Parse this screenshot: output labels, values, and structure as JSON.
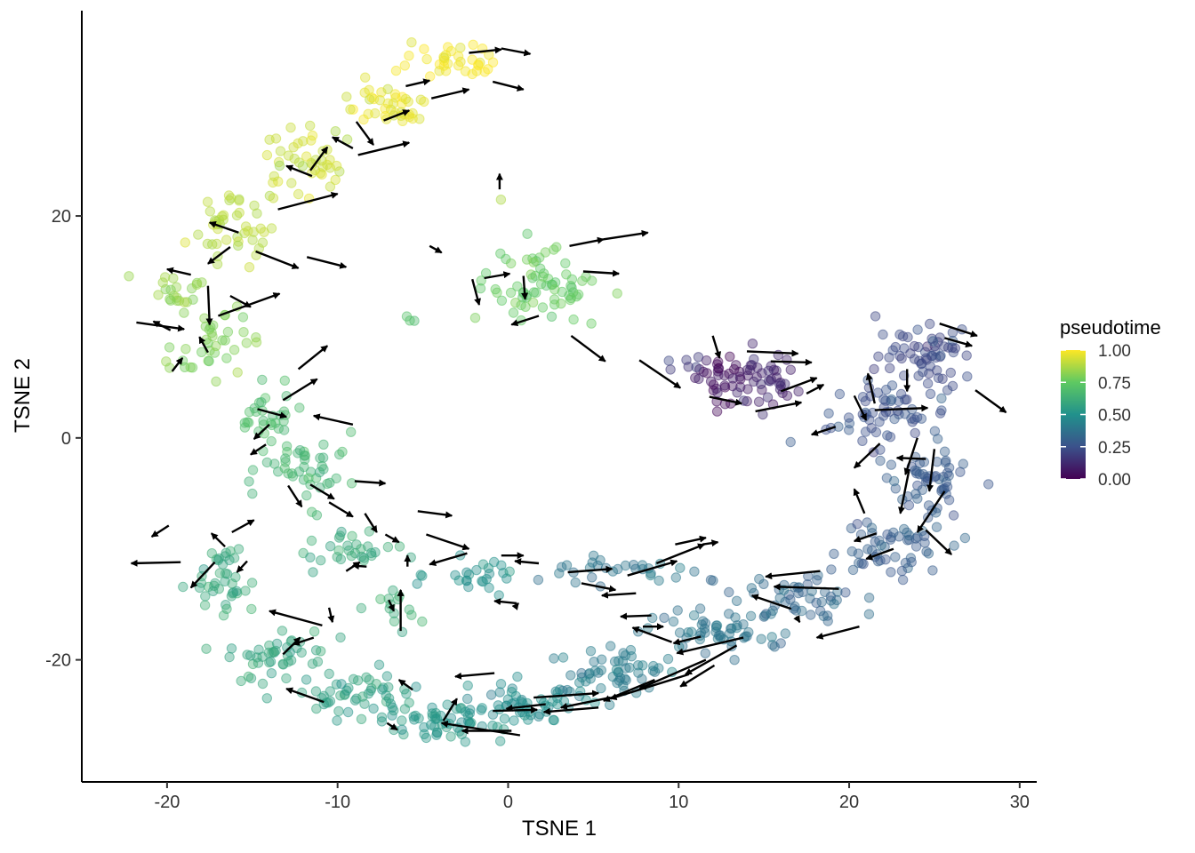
{
  "chart_data": {
    "type": "scatter",
    "title": "",
    "xlabel": "TSNE 1",
    "ylabel": "TSNE 2",
    "xlim": [
      -25,
      31
    ],
    "ylim": [
      -31,
      38.5
    ],
    "x_ticks": [
      -20,
      -10,
      0,
      10,
      20,
      30
    ],
    "y_ticks": [
      -20,
      0,
      20
    ],
    "x_tick_labels": [
      "-20",
      "-10",
      "0",
      "10",
      "20",
      "30"
    ],
    "y_tick_labels": [
      "-20",
      "0",
      "20"
    ],
    "grid": false,
    "color_legend": {
      "title": "pseudotime",
      "placement": "right",
      "colormap": "viridis",
      "range": [
        0,
        1
      ],
      "tick_values": [
        1.0,
        0.75,
        0.5,
        0.25,
        0.0
      ],
      "tick_labels": [
        "1.00",
        "0.75",
        "0.50",
        "0.25",
        "0.00"
      ],
      "stops": [
        "#440154",
        "#3b528b",
        "#21918c",
        "#5ec962",
        "#fde725"
      ]
    },
    "point_style": {
      "opacity": 0.4
    },
    "clusters": [
      {
        "cx": 12.5,
        "cy": 5.5,
        "sx": 1.1,
        "sy": 1.7,
        "n": 34,
        "t": 0.05
      },
      {
        "cx": 15.0,
        "cy": 5.0,
        "sx": 1.5,
        "sy": 2.0,
        "n": 40,
        "t": 0.1
      },
      {
        "cx": 10.5,
        "cy": 6.5,
        "sx": 1.0,
        "sy": 0.6,
        "n": 6,
        "t": 0.18
      },
      {
        "cx": 24.5,
        "cy": 7.5,
        "sx": 2.0,
        "sy": 2.2,
        "n": 60,
        "t": 0.22
      },
      {
        "cx": 22.5,
        "cy": 2.0,
        "sx": 2.5,
        "sy": 2.2,
        "n": 60,
        "t": 0.25
      },
      {
        "cx": 24.5,
        "cy": -3.5,
        "sx": 1.6,
        "sy": 2.5,
        "n": 55,
        "t": 0.28
      },
      {
        "cx": 22.0,
        "cy": -10.0,
        "sx": 2.8,
        "sy": 1.8,
        "n": 55,
        "t": 0.3
      },
      {
        "cx": 17.0,
        "cy": -14.0,
        "sx": 2.5,
        "sy": 1.6,
        "n": 50,
        "t": 0.33
      },
      {
        "cx": 12.0,
        "cy": -17.5,
        "sx": 3.0,
        "sy": 1.6,
        "n": 55,
        "t": 0.38
      },
      {
        "cx": 6.0,
        "cy": -21.0,
        "sx": 3.0,
        "sy": 1.5,
        "n": 55,
        "t": 0.42
      },
      {
        "cx": 1.0,
        "cy": -24.0,
        "sx": 2.5,
        "sy": 1.5,
        "n": 55,
        "t": 0.47
      },
      {
        "cx": -4.0,
        "cy": -25.5,
        "sx": 2.5,
        "sy": 1.2,
        "n": 55,
        "t": 0.52
      },
      {
        "cx": -9.0,
        "cy": -23.0,
        "sx": 2.5,
        "sy": 1.6,
        "n": 50,
        "t": 0.56
      },
      {
        "cx": -13.5,
        "cy": -19.5,
        "sx": 2.0,
        "sy": 1.8,
        "n": 45,
        "t": 0.58
      },
      {
        "cx": -16.5,
        "cy": -13.0,
        "sx": 1.3,
        "sy": 2.5,
        "n": 40,
        "t": 0.6
      },
      {
        "cx": -6.5,
        "cy": -15.5,
        "sx": 0.8,
        "sy": 1.4,
        "n": 14,
        "t": 0.62
      },
      {
        "cx": 6.0,
        "cy": -12.0,
        "sx": 3.5,
        "sy": 0.9,
        "n": 30,
        "t": 0.4
      },
      {
        "cx": -2.0,
        "cy": -12.5,
        "sx": 2.0,
        "sy": 1.0,
        "n": 25,
        "t": 0.5
      },
      {
        "cx": -9.5,
        "cy": -10.0,
        "sx": 2.0,
        "sy": 1.5,
        "n": 30,
        "t": 0.6
      },
      {
        "cx": -11.5,
        "cy": -3.0,
        "sx": 2.0,
        "sy": 2.2,
        "n": 45,
        "t": 0.65
      },
      {
        "cx": -14.0,
        "cy": 1.5,
        "sx": 1.5,
        "sy": 1.8,
        "n": 30,
        "t": 0.68
      },
      {
        "cx": -17.5,
        "cy": 8.5,
        "sx": 1.5,
        "sy": 2.5,
        "n": 40,
        "t": 0.8
      },
      {
        "cx": -19.5,
        "cy": 13.5,
        "sx": 1.3,
        "sy": 1.2,
        "n": 20,
        "t": 0.84
      },
      {
        "cx": 2.0,
        "cy": 13.5,
        "sx": 2.2,
        "sy": 2.5,
        "n": 70,
        "t": 0.75
      },
      {
        "cx": -16.5,
        "cy": 19.0,
        "sx": 1.8,
        "sy": 2.0,
        "n": 45,
        "t": 0.88
      },
      {
        "cx": -11.5,
        "cy": 25.0,
        "sx": 2.0,
        "sy": 2.0,
        "n": 45,
        "t": 0.92
      },
      {
        "cx": -7.0,
        "cy": 30.0,
        "sx": 2.0,
        "sy": 1.8,
        "n": 40,
        "t": 0.96
      },
      {
        "cx": -3.0,
        "cy": 34.0,
        "sx": 2.0,
        "sy": 1.2,
        "n": 35,
        "t": 0.99
      },
      {
        "cx": -5.5,
        "cy": 10.5,
        "sx": 0.3,
        "sy": 0.3,
        "n": 3,
        "t": 0.72
      },
      {
        "cx": -0.5,
        "cy": 21.5,
        "sx": 0.1,
        "sy": 0.1,
        "n": 1,
        "t": 0.9
      }
    ],
    "arrows": [
      {
        "x1": -8.8,
        "y1": 25.5,
        "x2": -5.8,
        "y2": 26.6
      },
      {
        "x1": -13.5,
        "y1": 20.6,
        "x2": -10.0,
        "y2": 22.0
      },
      {
        "x1": -17.0,
        "y1": 11.0,
        "x2": -13.4,
        "y2": 13.0
      },
      {
        "x1": -17.6,
        "y1": 13.7,
        "x2": -17.5,
        "y2": 10.2
      },
      {
        "x1": -14.8,
        "y1": 16.8,
        "x2": -12.3,
        "y2": 15.3
      },
      {
        "x1": -21.8,
        "y1": 10.4,
        "x2": -19.0,
        "y2": 9.8
      },
      {
        "x1": -12.3,
        "y1": 6.2,
        "x2": -10.6,
        "y2": 8.3
      },
      {
        "x1": -13.2,
        "y1": 3.4,
        "x2": -11.2,
        "y2": 5.3
      },
      {
        "x1": -16.3,
        "y1": 12.8,
        "x2": -15.1,
        "y2": 11.8
      },
      {
        "x1": -11.8,
        "y1": 16.3,
        "x2": -9.5,
        "y2": 15.4
      },
      {
        "x1": -4.6,
        "y1": 17.3,
        "x2": -3.9,
        "y2": 16.7
      },
      {
        "x1": -4.5,
        "y1": 30.6,
        "x2": -2.3,
        "y2": 31.4
      },
      {
        "x1": -0.9,
        "y1": 32.1,
        "x2": 0.9,
        "y2": 31.4
      },
      {
        "x1": -0.4,
        "y1": 35.1,
        "x2": 1.3,
        "y2": 34.6
      },
      {
        "x1": -2.3,
        "y1": 34.7,
        "x2": -0.4,
        "y2": 35.0
      },
      {
        "x1": -6.0,
        "y1": 31.7,
        "x2": -4.6,
        "y2": 32.2
      },
      {
        "x1": -7.3,
        "y1": 28.6,
        "x2": -5.8,
        "y2": 29.5
      },
      {
        "x1": -9.1,
        "y1": 26.1,
        "x2": -10.3,
        "y2": 27.1
      },
      {
        "x1": -11.5,
        "y1": 23.6,
        "x2": -13.0,
        "y2": 24.5
      },
      {
        "x1": -15.8,
        "y1": 18.5,
        "x2": -17.5,
        "y2": 19.4
      },
      {
        "x1": -18.6,
        "y1": 14.7,
        "x2": -20.0,
        "y2": 15.2
      },
      {
        "x1": 3.6,
        "y1": 17.3,
        "x2": 5.6,
        "y2": 17.9
      },
      {
        "x1": 5.6,
        "y1": 17.9,
        "x2": 8.2,
        "y2": 18.5
      },
      {
        "x1": 4.4,
        "y1": 15.0,
        "x2": 6.5,
        "y2": 14.8
      },
      {
        "x1": 3.7,
        "y1": 9.2,
        "x2": 5.7,
        "y2": 6.9
      },
      {
        "x1": 0.9,
        "y1": 14.6,
        "x2": 1.0,
        "y2": 12.5
      },
      {
        "x1": -1.4,
        "y1": 14.4,
        "x2": 0.1,
        "y2": 14.8
      },
      {
        "x1": 1.8,
        "y1": 11.0,
        "x2": 0.2,
        "y2": 10.2
      },
      {
        "x1": -0.5,
        "y1": 22.4,
        "x2": -0.5,
        "y2": 23.8
      },
      {
        "x1": 7.7,
        "y1": 7.0,
        "x2": 10.1,
        "y2": 4.5
      },
      {
        "x1": 12.0,
        "y1": 9.2,
        "x2": 12.4,
        "y2": 7.2
      },
      {
        "x1": 11.8,
        "y1": 3.7,
        "x2": 13.7,
        "y2": 3.1
      },
      {
        "x1": 14.0,
        "y1": 7.8,
        "x2": 17.0,
        "y2": 7.6
      },
      {
        "x1": 15.4,
        "y1": 6.9,
        "x2": 17.8,
        "y2": 6.8
      },
      {
        "x1": 16.0,
        "y1": 4.2,
        "x2": 18.1,
        "y2": 5.4
      },
      {
        "x1": 14.5,
        "y1": 2.4,
        "x2": 17.2,
        "y2": 3.2
      },
      {
        "x1": 17.5,
        "y1": 4.0,
        "x2": 18.5,
        "y2": 4.8
      },
      {
        "x1": 19.2,
        "y1": 1.0,
        "x2": 17.8,
        "y2": 0.3
      },
      {
        "x1": 21.5,
        "y1": 2.5,
        "x2": 24.6,
        "y2": 2.7
      },
      {
        "x1": 23.4,
        "y1": 6.2,
        "x2": 23.4,
        "y2": 4.2
      },
      {
        "x1": 25.3,
        "y1": 10.3,
        "x2": 27.5,
        "y2": 9.2
      },
      {
        "x1": 25.6,
        "y1": 9.0,
        "x2": 27.2,
        "y2": 8.3
      },
      {
        "x1": 27.4,
        "y1": 4.3,
        "x2": 29.2,
        "y2": 2.3
      },
      {
        "x1": 24.0,
        "y1": 0.0,
        "x2": 23.3,
        "y2": -3.3
      },
      {
        "x1": 25.0,
        "y1": -1.0,
        "x2": 24.7,
        "y2": -4.8
      },
      {
        "x1": 25.6,
        "y1": -4.8,
        "x2": 24.0,
        "y2": -8.5
      },
      {
        "x1": 23.5,
        "y1": -3.0,
        "x2": 23.0,
        "y2": -6.8
      },
      {
        "x1": 20.9,
        "y1": -6.8,
        "x2": 20.3,
        "y2": -4.6
      },
      {
        "x1": 21.6,
        "y1": -8.6,
        "x2": 20.3,
        "y2": -9.3
      },
      {
        "x1": 22.6,
        "y1": -10.0,
        "x2": 21.0,
        "y2": -10.9
      },
      {
        "x1": 19.4,
        "y1": -13.6,
        "x2": 15.6,
        "y2": -13.4
      },
      {
        "x1": 18.3,
        "y1": -12.0,
        "x2": 15.1,
        "y2": -12.5
      },
      {
        "x1": 16.6,
        "y1": -15.4,
        "x2": 14.3,
        "y2": -14.2
      },
      {
        "x1": 13.8,
        "y1": -18.0,
        "x2": 9.9,
        "y2": -19.4
      },
      {
        "x1": 13.4,
        "y1": -18.7,
        "x2": 10.4,
        "y2": -21.3
      },
      {
        "x1": 12.1,
        "y1": -20.5,
        "x2": 10.1,
        "y2": -22.4
      },
      {
        "x1": 10.6,
        "y1": -21.3,
        "x2": 6.0,
        "y2": -23.5
      },
      {
        "x1": 11.6,
        "y1": -20.0,
        "x2": 7.7,
        "y2": -22.6
      },
      {
        "x1": 8.6,
        "y1": -21.8,
        "x2": 5.6,
        "y2": -23.7
      },
      {
        "x1": 6.0,
        "y1": -23.4,
        "x2": 3.1,
        "y2": -24.3
      },
      {
        "x1": 5.3,
        "y1": -24.3,
        "x2": 2.1,
        "y2": -24.7
      },
      {
        "x1": 2.2,
        "y1": -24.0,
        "x2": -0.1,
        "y2": -24.4
      },
      {
        "x1": 1.5,
        "y1": -23.4,
        "x2": 5.3,
        "y2": -23.0
      },
      {
        "x1": -0.9,
        "y1": -24.6,
        "x2": 1.7,
        "y2": -24.5
      },
      {
        "x1": 0.2,
        "y1": -26.4,
        "x2": -2.7,
        "y2": -26.4
      },
      {
        "x1": 0.7,
        "y1": -26.8,
        "x2": -3.9,
        "y2": -25.7
      },
      {
        "x1": -3.8,
        "y1": -25.5,
        "x2": -3.0,
        "y2": -23.5
      },
      {
        "x1": -0.8,
        "y1": -21.2,
        "x2": -3.1,
        "y2": -21.5
      },
      {
        "x1": -5.6,
        "y1": -22.7,
        "x2": -6.4,
        "y2": -21.8
      },
      {
        "x1": -7.1,
        "y1": -25.7,
        "x2": -6.5,
        "y2": -26.3
      },
      {
        "x1": -10.8,
        "y1": -23.8,
        "x2": -13.0,
        "y2": -22.6
      },
      {
        "x1": -13.2,
        "y1": -19.5,
        "x2": -12.2,
        "y2": -18.0
      },
      {
        "x1": -11.4,
        "y1": -18.0,
        "x2": -12.6,
        "y2": -18.6
      },
      {
        "x1": -10.9,
        "y1": -16.9,
        "x2": -14.0,
        "y2": -15.6
      },
      {
        "x1": -15.3,
        "y1": -11.1,
        "x2": -15.9,
        "y2": -12.1
      },
      {
        "x1": -16.2,
        "y1": -8.5,
        "x2": -14.9,
        "y2": -7.4
      },
      {
        "x1": -16.6,
        "y1": -9.8,
        "x2": -17.4,
        "y2": -8.6
      },
      {
        "x1": -19.2,
        "y1": -11.2,
        "x2": -22.1,
        "y2": -11.3
      },
      {
        "x1": -19.9,
        "y1": -7.9,
        "x2": -20.9,
        "y2": -8.9
      },
      {
        "x1": -17.2,
        "y1": -11.2,
        "x2": -18.6,
        "y2": -13.5
      },
      {
        "x1": -7.0,
        "y1": -14.6,
        "x2": -6.7,
        "y2": -15.6
      },
      {
        "x1": -6.3,
        "y1": -17.4,
        "x2": -6.3,
        "y2": -13.7
      },
      {
        "x1": -10.5,
        "y1": -15.3,
        "x2": -10.3,
        "y2": -16.6
      },
      {
        "x1": -9.5,
        "y1": -12.0,
        "x2": -8.7,
        "y2": -11.2
      },
      {
        "x1": -8.3,
        "y1": -11.6,
        "x2": -9.1,
        "y2": -11.5
      },
      {
        "x1": -5.9,
        "y1": -11.6,
        "x2": -5.9,
        "y2": -10.6
      },
      {
        "x1": -5.3,
        "y1": -6.6,
        "x2": -3.3,
        "y2": -7.0
      },
      {
        "x1": -4.8,
        "y1": -8.7,
        "x2": -2.3,
        "y2": -10.0
      },
      {
        "x1": -0.4,
        "y1": -10.6,
        "x2": 0.9,
        "y2": -10.6
      },
      {
        "x1": -2.4,
        "y1": -10.4,
        "x2": -4.6,
        "y2": -11.4
      },
      {
        "x1": 1.8,
        "y1": -11.3,
        "x2": 0.4,
        "y2": -11.1
      },
      {
        "x1": 3.5,
        "y1": -12.1,
        "x2": 6.1,
        "y2": -11.8
      },
      {
        "x1": 4.3,
        "y1": -13.1,
        "x2": 6.3,
        "y2": -13.7
      },
      {
        "x1": 7.0,
        "y1": -12.4,
        "x2": 9.9,
        "y2": -11.1
      },
      {
        "x1": 8.7,
        "y1": -11.3,
        "x2": 11.5,
        "y2": -9.6
      },
      {
        "x1": 9.8,
        "y1": -9.6,
        "x2": 11.6,
        "y2": -9.0
      },
      {
        "x1": 11.4,
        "y1": -9.6,
        "x2": 12.3,
        "y2": -9.4
      },
      {
        "x1": 7.5,
        "y1": -14.0,
        "x2": 5.5,
        "y2": -14.2
      },
      {
        "x1": 8.4,
        "y1": -16.0,
        "x2": 6.6,
        "y2": -16.1
      },
      {
        "x1": 7.9,
        "y1": -17.0,
        "x2": 9.1,
        "y2": -17.0
      },
      {
        "x1": 9.6,
        "y1": -18.4,
        "x2": 7.3,
        "y2": -17.1
      },
      {
        "x1": 11.3,
        "y1": -17.9,
        "x2": 9.7,
        "y2": -18.5
      },
      {
        "x1": 0.5,
        "y1": -14.9,
        "x2": -0.8,
        "y2": -14.7
      },
      {
        "x1": 0.4,
        "y1": -15.3,
        "x2": 0.6,
        "y2": -14.9
      },
      {
        "x1": 20.6,
        "y1": -17.0,
        "x2": 18.1,
        "y2": -18.0
      },
      {
        "x1": 16.9,
        "y1": -16.1,
        "x2": 17.1,
        "y2": -16.6
      },
      {
        "x1": 24.5,
        "y1": -8.3,
        "x2": 26.0,
        "y2": -10.5
      },
      {
        "x1": 24.5,
        "y1": -1.9,
        "x2": 22.8,
        "y2": -1.8
      },
      {
        "x1": 21.8,
        "y1": -0.5,
        "x2": 20.3,
        "y2": -2.7
      },
      {
        "x1": 21.5,
        "y1": 3.1,
        "x2": 21.1,
        "y2": 5.8
      },
      {
        "x1": 20.3,
        "y1": 3.8,
        "x2": 21.0,
        "y2": 1.6
      },
      {
        "x1": -2.1,
        "y1": 14.3,
        "x2": -1.7,
        "y2": 12.0
      },
      {
        "x1": -9.1,
        "y1": 1.2,
        "x2": -11.4,
        "y2": 2.0
      },
      {
        "x1": -11.6,
        "y1": -4.2,
        "x2": -10.2,
        "y2": -5.5
      },
      {
        "x1": -9.0,
        "y1": -3.9,
        "x2": -7.2,
        "y2": -4.1
      },
      {
        "x1": -10.5,
        "y1": -5.8,
        "x2": -9.1,
        "y2": -7.1
      },
      {
        "x1": -12.9,
        "y1": -4.3,
        "x2": -12.1,
        "y2": -6.2
      },
      {
        "x1": -8.4,
        "y1": -6.8,
        "x2": -7.7,
        "y2": -8.5
      },
      {
        "x1": -7.2,
        "y1": -8.7,
        "x2": -6.4,
        "y2": -9.4
      },
      {
        "x1": -14.2,
        "y1": -0.6,
        "x2": -15.1,
        "y2": -1.5
      },
      {
        "x1": -14.0,
        "y1": 1.2,
        "x2": -14.9,
        "y2": -0.1
      },
      {
        "x1": -14.7,
        "y1": 2.6,
        "x2": -13.0,
        "y2": 1.9
      },
      {
        "x1": -19.7,
        "y1": 6.0,
        "x2": -19.1,
        "y2": 7.2
      },
      {
        "x1": -19.8,
        "y1": 9.7,
        "x2": -20.8,
        "y2": 10.5
      },
      {
        "x1": -17.6,
        "y1": 7.7,
        "x2": -18.1,
        "y2": 9.1
      },
      {
        "x1": -8.9,
        "y1": 28.5,
        "x2": -7.9,
        "y2": 26.4
      },
      {
        "x1": -11.6,
        "y1": 24.1,
        "x2": -10.6,
        "y2": 26.2
      },
      {
        "x1": -16.3,
        "y1": 17.2,
        "x2": -17.6,
        "y2": 15.7
      }
    ]
  }
}
